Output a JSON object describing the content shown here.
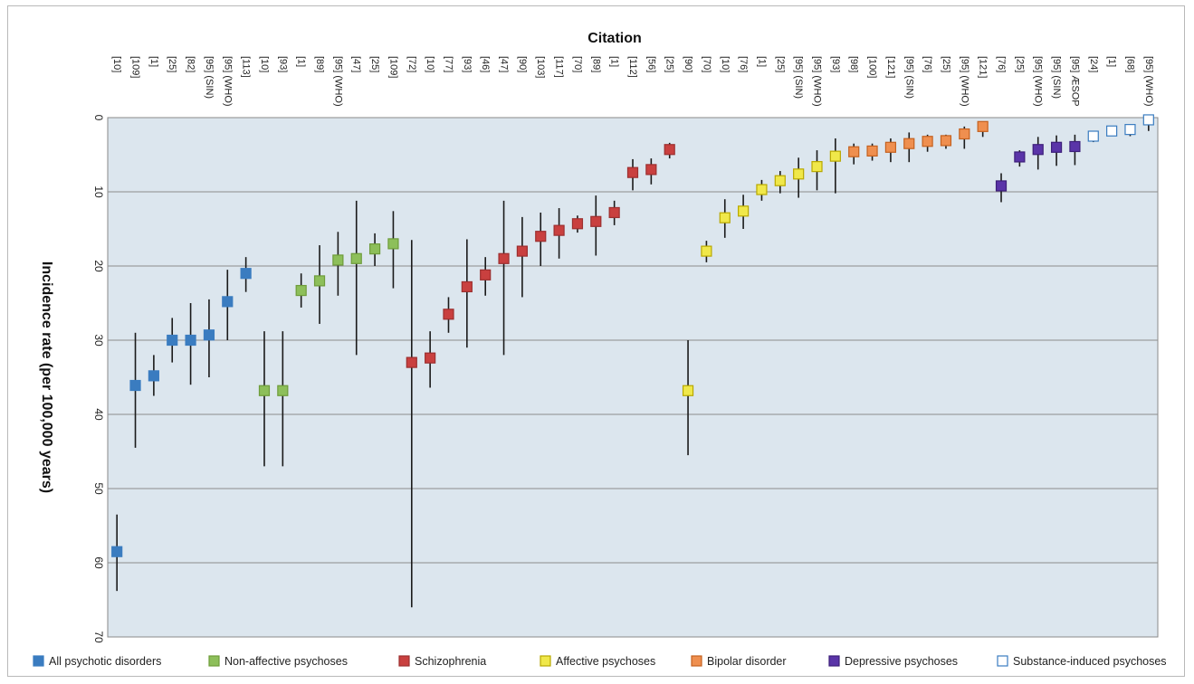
{
  "chart_data": {
    "type": "scatter",
    "x_title": "Citation",
    "y_title": "Incidence rate (per 100,000 years)",
    "y_reversed": true,
    "ylim": [
      0,
      70
    ],
    "y_ticks": [
      0,
      10,
      20,
      30,
      40,
      50,
      60,
      70
    ],
    "grid": true,
    "legend_position": "bottom",
    "series": [
      {
        "name": "All psychotic disorders",
        "color": "#3a7cc0",
        "fill": "#3a7cc0",
        "points": [
          {
            "citation": "[10]",
            "value": 58.5,
            "low": 53.5,
            "high": 63.8
          },
          {
            "citation": "[109]",
            "value": 36.1,
            "low": 29.0,
            "high": 44.5
          },
          {
            "citation": "[1]",
            "value": 34.8,
            "low": 32.0,
            "high": 37.5
          },
          {
            "citation": "[25]",
            "value": 30.0,
            "low": 27.0,
            "high": 33.0
          },
          {
            "citation": "[82]",
            "value": 30.0,
            "low": 25.0,
            "high": 36.0
          },
          {
            "citation": "[95] (SIN)",
            "value": 29.3,
            "low": 24.5,
            "high": 35.0
          },
          {
            "citation": "[95] (WHO)",
            "value": 24.8,
            "low": 20.5,
            "high": 30.0
          },
          {
            "citation": "[113]",
            "value": 21.0,
            "low": 18.8,
            "high": 23.5
          }
        ]
      },
      {
        "name": "Non-affective psychoses",
        "color": "#6e9c3a",
        "fill": "#8dbf5a",
        "points": [
          {
            "citation": "[10]",
            "value": 36.8,
            "low": 28.8,
            "high": 47.0
          },
          {
            "citation": "[93]",
            "value": 36.8,
            "low": 28.8,
            "high": 47.0
          },
          {
            "citation": "[1]",
            "value": 23.3,
            "low": 21.0,
            "high": 25.6
          },
          {
            "citation": "[89]",
            "value": 22.0,
            "low": 17.2,
            "high": 27.8
          },
          {
            "citation": "[95] (WHO)",
            "value": 19.2,
            "low": 15.4,
            "high": 24.0
          },
          {
            "citation": "[47]",
            "value": 19.0,
            "low": 11.2,
            "high": 32.0
          },
          {
            "citation": "[25]",
            "value": 17.7,
            "low": 15.6,
            "high": 20.0
          },
          {
            "citation": "[109]",
            "value": 17.0,
            "low": 12.6,
            "high": 23.0
          }
        ]
      },
      {
        "name": "Schizophrenia",
        "color": "#9c2f2f",
        "fill": "#c9403f",
        "points": [
          {
            "citation": "[72]",
            "value": 33.0,
            "low": 16.5,
            "high": 66.0
          },
          {
            "citation": "[10]",
            "value": 32.4,
            "low": 28.8,
            "high": 36.4
          },
          {
            "citation": "[77]",
            "value": 26.5,
            "low": 24.2,
            "high": 29.0
          },
          {
            "citation": "[93]",
            "value": 22.8,
            "low": 16.4,
            "high": 31.0
          },
          {
            "citation": "[46]",
            "value": 21.2,
            "low": 18.8,
            "high": 24.0
          },
          {
            "citation": "[47]",
            "value": 19.0,
            "low": 11.2,
            "high": 32.0
          },
          {
            "citation": "[90]",
            "value": 18.0,
            "low": 13.4,
            "high": 24.2
          },
          {
            "citation": "[103]",
            "value": 16.0,
            "low": 12.8,
            "high": 20.0
          },
          {
            "citation": "[117]",
            "value": 15.2,
            "low": 12.2,
            "high": 19.0
          },
          {
            "citation": "[70]",
            "value": 14.3,
            "low": 13.2,
            "high": 15.5
          },
          {
            "citation": "[89]",
            "value": 14.0,
            "low": 10.5,
            "high": 18.6
          },
          {
            "citation": "[1]",
            "value": 12.8,
            "low": 11.2,
            "high": 14.5
          },
          {
            "citation": "[112]",
            "value": 7.4,
            "low": 5.6,
            "high": 9.8
          },
          {
            "citation": "[56]",
            "value": 7.0,
            "low": 5.5,
            "high": 9.0
          },
          {
            "citation": "[25]",
            "value": 4.3,
            "low": 3.4,
            "high": 5.5
          }
        ]
      },
      {
        "name": "Affective psychoses",
        "color": "#b8a800",
        "fill": "#f0e84a",
        "points": [
          {
            "citation": "[90]",
            "value": 36.8,
            "low": 30.0,
            "high": 45.5
          },
          {
            "citation": "[70]",
            "value": 18.0,
            "low": 16.6,
            "high": 19.5
          },
          {
            "citation": "[10]",
            "value": 13.5,
            "low": 11.0,
            "high": 16.2
          },
          {
            "citation": "[76]",
            "value": 12.6,
            "low": 10.4,
            "high": 15.0
          },
          {
            "citation": "[1]",
            "value": 9.7,
            "low": 8.4,
            "high": 11.2
          },
          {
            "citation": "[25]",
            "value": 8.5,
            "low": 7.2,
            "high": 10.2
          },
          {
            "citation": "[95] (SIN)",
            "value": 7.6,
            "low": 5.4,
            "high": 10.8
          },
          {
            "citation": "[95] (WHO)",
            "value": 6.6,
            "low": 4.4,
            "high": 9.8
          },
          {
            "citation": "[93]",
            "value": 5.2,
            "low": 2.8,
            "high": 10.2
          }
        ]
      },
      {
        "name": "Bipolar disorder",
        "color": "#c4611f",
        "fill": "#ef8f4f",
        "points": [
          {
            "citation": "[98]",
            "value": 4.6,
            "low": 3.5,
            "high": 6.3
          },
          {
            "citation": "[100]",
            "value": 4.5,
            "low": 3.5,
            "high": 5.8
          },
          {
            "citation": "[121]",
            "value": 4.0,
            "low": 2.8,
            "high": 6.0
          },
          {
            "citation": "[95] (SIN)",
            "value": 3.5,
            "low": 2.0,
            "high": 6.0
          },
          {
            "citation": "[76]",
            "value": 3.2,
            "low": 2.3,
            "high": 4.6
          },
          {
            "citation": "[25]",
            "value": 3.1,
            "low": 2.3,
            "high": 4.2
          },
          {
            "citation": "[95] (WHO)",
            "value": 2.2,
            "low": 1.2,
            "high": 4.2
          },
          {
            "citation": "[121]",
            "value": 1.2,
            "low": 0.6,
            "high": 2.6
          }
        ]
      },
      {
        "name": "Depressive psychoses",
        "color": "#3d1f7a",
        "fill": "#5a34a8",
        "points": [
          {
            "citation": "[76]",
            "value": 9.2,
            "low": 7.5,
            "high": 11.4
          },
          {
            "citation": "[25]",
            "value": 5.3,
            "low": 4.4,
            "high": 6.6
          },
          {
            "citation": "[95] (WHO)",
            "value": 4.3,
            "low": 2.6,
            "high": 7.0
          },
          {
            "citation": "[95] (SIN)",
            "value": 4.0,
            "low": 2.4,
            "high": 6.5
          },
          {
            "citation": "[95] ÆSOP",
            "value": 3.9,
            "low": 2.3,
            "high": 6.4
          }
        ]
      },
      {
        "name": "Substance-induced psychoses",
        "color": "#3a7cc0",
        "fill": "#ffffff",
        "points": [
          {
            "citation": "[24]",
            "value": 2.5,
            "low": 1.9,
            "high": 3.3
          },
          {
            "citation": "[1]",
            "value": 1.8,
            "low": 1.4,
            "high": 2.3
          },
          {
            "citation": "[68]",
            "value": 1.6,
            "low": 1.0,
            "high": 2.5
          },
          {
            "citation": "[95] (WHO)",
            "value": 0.3,
            "low": 0.0,
            "high": 1.8
          }
        ]
      }
    ]
  }
}
